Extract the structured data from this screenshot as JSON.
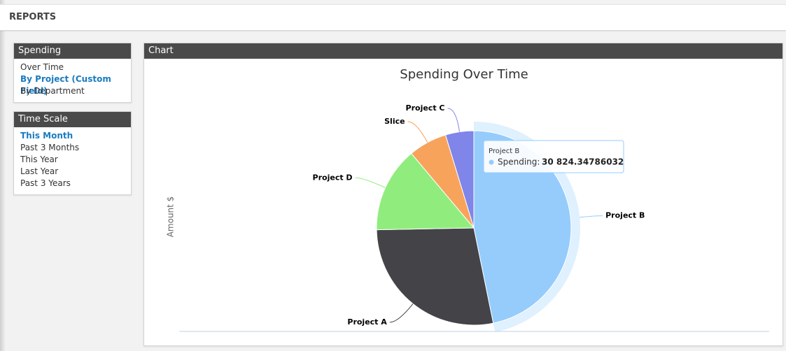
{
  "header": {
    "title": "REPORTS"
  },
  "sidebar": [
    {
      "title": "Spending",
      "items": [
        "Over Time",
        "By Project (Custom Field)",
        "By Department"
      ]
    },
    {
      "title": "Time Scale",
      "items": [
        "This Month",
        "Past 3 Months",
        "This Year",
        "Last Year",
        "Past 3 Years"
      ]
    }
  ],
  "chart_panel": {
    "title": "Chart"
  },
  "chart_data": {
    "type": "pie",
    "title": "Spending Over Time",
    "y_label": "Amount $",
    "series_name": "Spending",
    "tooltip_label": "Spending:",
    "categories": [
      "Project B",
      "Project A",
      "Project D",
      "Slice",
      "Project C"
    ],
    "values": [
      30824.34786032,
      18380,
      9350,
      4210,
      3100
    ],
    "value_labels": [
      "30 824.34786032",
      null,
      null,
      null,
      null
    ],
    "colors": [
      "#95ccfc",
      "#434348",
      "#90ed7d",
      "#f7a35c",
      "#8085e9"
    ]
  }
}
